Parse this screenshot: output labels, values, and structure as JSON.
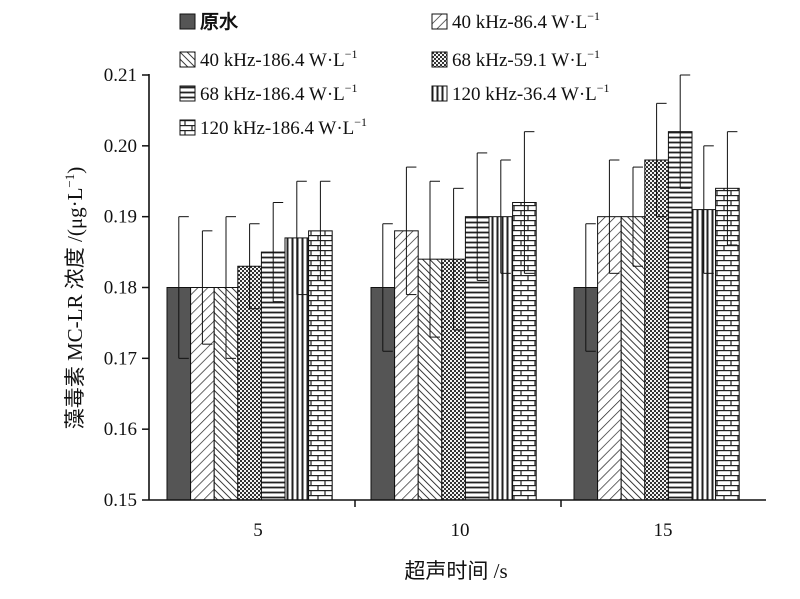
{
  "chart_data": {
    "type": "bar",
    "xlabel": "超声时间 /s",
    "ylabel": "藻毒素 MC-LR 浓度 /(μg·L⁻¹)",
    "ylabel_parts": {
      "main": "藻毒素 MC-LR 浓度 /(μg·L",
      "sup": "−1",
      "end": ")"
    },
    "ylim": [
      0.15,
      0.21
    ],
    "yticks": [
      "0.15",
      "0.16",
      "0.17",
      "0.18",
      "0.19",
      "0.20",
      "0.21"
    ],
    "categories": [
      "5",
      "10",
      "15"
    ],
    "series": [
      {
        "name": "原水",
        "label_main": "原水",
        "label_sup": "",
        "pattern": "solid",
        "values": [
          0.18,
          0.18,
          0.18
        ],
        "errors": [
          0.01,
          0.009,
          0.009
        ]
      },
      {
        "name": "40 kHz-86.4 W·L⁻¹",
        "label_main": "40 kHz-86.4 W·L",
        "label_sup": "−1",
        "pattern": "diag-right",
        "values": [
          0.18,
          0.188,
          0.19
        ],
        "errors": [
          0.008,
          0.009,
          0.008
        ]
      },
      {
        "name": "40 kHz-186.4 W·L⁻¹",
        "label_main": "40 kHz-186.4 W·L",
        "label_sup": "−1",
        "pattern": "diag-left",
        "values": [
          0.18,
          0.184,
          0.19
        ],
        "errors": [
          0.01,
          0.011,
          0.007
        ]
      },
      {
        "name": "68 kHz-59.1 W·L⁻¹",
        "label_main": "68 kHz-59.1 W·L",
        "label_sup": "−1",
        "pattern": "checker",
        "values": [
          0.183,
          0.184,
          0.198
        ],
        "errors": [
          0.006,
          0.01,
          0.008
        ]
      },
      {
        "name": "68 kHz-186.4 W·L⁻¹",
        "label_main": "68 kHz-186.4 W·L",
        "label_sup": "−1",
        "pattern": "horizontal",
        "values": [
          0.185,
          0.19,
          0.202
        ],
        "errors": [
          0.007,
          0.009,
          0.008
        ]
      },
      {
        "name": "120 kHz-36.4 W·L⁻¹",
        "label_main": "120 kHz-36.4 W·L",
        "label_sup": "−1",
        "pattern": "vertical",
        "values": [
          0.187,
          0.19,
          0.191
        ],
        "errors": [
          0.008,
          0.008,
          0.009
        ]
      },
      {
        "name": "120 kHz-186.4 W·L⁻¹",
        "label_main": "120 kHz-186.4 W·L",
        "label_sup": "−1",
        "pattern": "brick",
        "values": [
          0.188,
          0.192,
          0.194
        ],
        "errors": [
          0.007,
          0.01,
          0.008
        ]
      }
    ],
    "legend": "top, inside plot area, two columns"
  }
}
